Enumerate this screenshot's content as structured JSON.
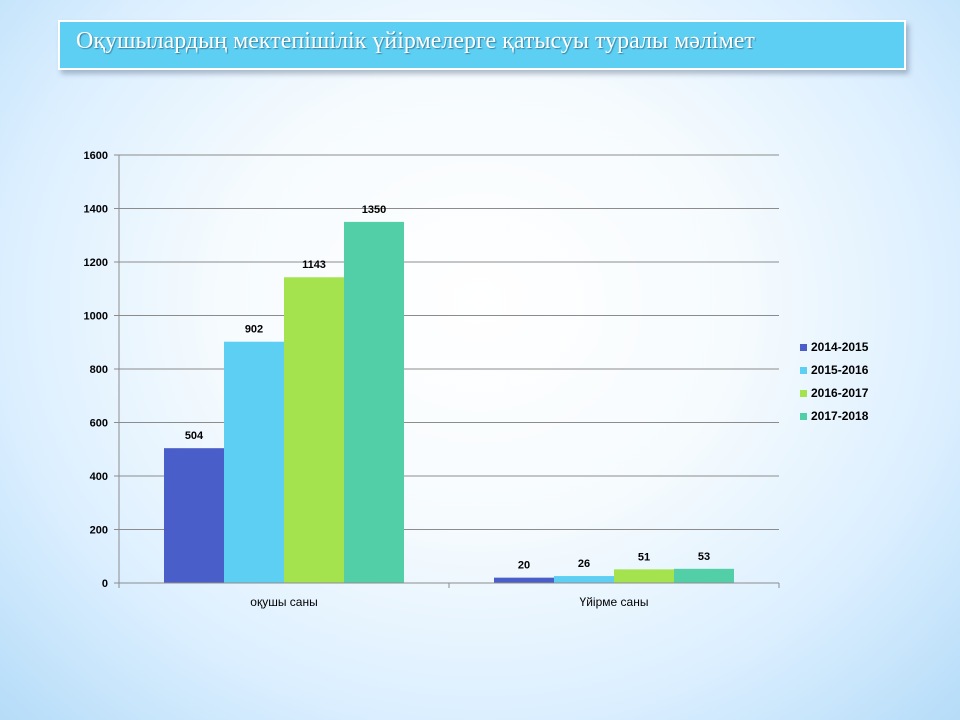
{
  "header": {
    "title": "Оқушылардың  мектепішілік  үйірмелерге қатысуы туралы мәлімет"
  },
  "chart_data": {
    "type": "bar",
    "title": "",
    "xlabel": "",
    "ylabel": "",
    "categories": [
      "оқушы саны",
      "Үйірме  саны"
    ],
    "series": [
      {
        "name": "2014-2015",
        "color": "#4a5ec9",
        "values": [
          504,
          20
        ]
      },
      {
        "name": "2015-2016",
        "color": "#5ccff3",
        "values": [
          902,
          26
        ]
      },
      {
        "name": "2016-2017",
        "color": "#a5e34e",
        "values": [
          1143,
          51
        ]
      },
      {
        "name": "2017-2018",
        "color": "#52cfa6",
        "values": [
          1350,
          53
        ]
      }
    ],
    "ylim": [
      0,
      1600
    ],
    "yticks": [
      0,
      200,
      400,
      600,
      800,
      1000,
      1200,
      1400,
      1600
    ],
    "grid": true,
    "legend": "right"
  }
}
